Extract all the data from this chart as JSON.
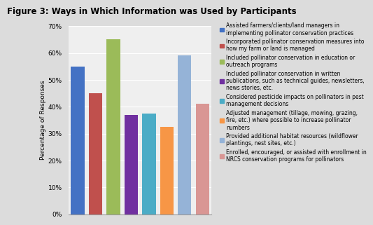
{
  "title": "Figure 3: Ways in Which Information was Used by Participants",
  "ylabel": "Percentage of Responses",
  "ylim": [
    0,
    0.7
  ],
  "yticks": [
    0.0,
    0.1,
    0.2,
    0.3,
    0.4,
    0.5,
    0.6,
    0.7
  ],
  "values": [
    0.55,
    0.45,
    0.65,
    0.37,
    0.375,
    0.325,
    0.59,
    0.41
  ],
  "colors": [
    "#4472C4",
    "#C0504D",
    "#9BBB59",
    "#7030A0",
    "#4BACC6",
    "#F79646",
    "#95B3D7",
    "#D99694"
  ],
  "legend_labels": [
    "Assisted farmers/clients/land managers in\nimplementing pollinator conservation practices",
    "Incorporated pollinator conservation measures into\nhow my farm or land is managed",
    "Included pollinator conservation in education or\noutreach programs",
    "Included pollinator conservation in written\npublications, such as technical guides, newsletters,\nnews stories, etc.",
    "Considered pesticide impacts on pollinators in pest\nmanagement decisions",
    "Adjusted management (tillage, mowing, grazing,\nfire, etc.) where possible to increase pollinator\nnumbers",
    "Provided additional habitat resources (wildflower\nplantings, nest sites, etc.)",
    "Enrolled, encouraged, or assisted with enrollment in\nNRCS conservation programs for pollinators"
  ],
  "background_color": "#DCDCDC",
  "plot_bg_color": "#EFEFEF",
  "title_fontsize": 8.5,
  "axis_fontsize": 6.5,
  "legend_fontsize": 5.5
}
